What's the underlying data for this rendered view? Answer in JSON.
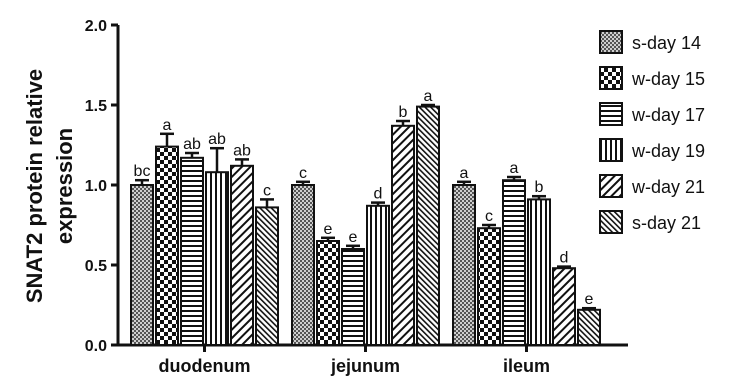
{
  "chart_data": {
    "type": "bar",
    "ylabel": [
      "SNAT2 protein relative",
      "expression"
    ],
    "ylim": [
      0,
      2.0
    ],
    "yticks": [
      "0.0",
      "0.5",
      "1.0",
      "1.5",
      "2.0"
    ],
    "categories": [
      "duodenum",
      "jejunum",
      "ileum"
    ],
    "legend_position": "right",
    "series": [
      {
        "name": "s-day 14",
        "pattern": "crosshatch-fine",
        "values": [
          1.0,
          1.0,
          1.0
        ],
        "errors": [
          0.03,
          0.02,
          0.02
        ],
        "letters": [
          "bc",
          "c",
          "a"
        ]
      },
      {
        "name": "w-day 15",
        "pattern": "checker",
        "values": [
          1.24,
          0.65,
          0.73
        ],
        "errors": [
          0.08,
          0.02,
          0.02
        ],
        "letters": [
          "a",
          "e",
          "c"
        ]
      },
      {
        "name": "w-day 17",
        "pattern": "horizontal",
        "values": [
          1.17,
          0.6,
          1.03
        ],
        "errors": [
          0.03,
          0.02,
          0.02
        ],
        "letters": [
          "ab",
          "e",
          "a"
        ]
      },
      {
        "name": "w-day 19",
        "pattern": "vertical",
        "values": [
          1.08,
          0.87,
          0.91
        ],
        "errors": [
          0.15,
          0.02,
          0.02
        ],
        "letters": [
          "ab",
          "d",
          "b"
        ]
      },
      {
        "name": "w-day 21",
        "pattern": "diagonal-wide",
        "values": [
          1.12,
          1.37,
          0.48
        ],
        "errors": [
          0.04,
          0.03,
          0.01
        ],
        "letters": [
          "ab",
          "b",
          "d"
        ]
      },
      {
        "name": "s-day 21",
        "pattern": "diagonal-dense",
        "values": [
          0.86,
          1.49,
          0.22
        ],
        "errors": [
          0.05,
          0.01,
          0.01
        ],
        "letters": [
          "c",
          "a",
          "e"
        ]
      }
    ]
  }
}
